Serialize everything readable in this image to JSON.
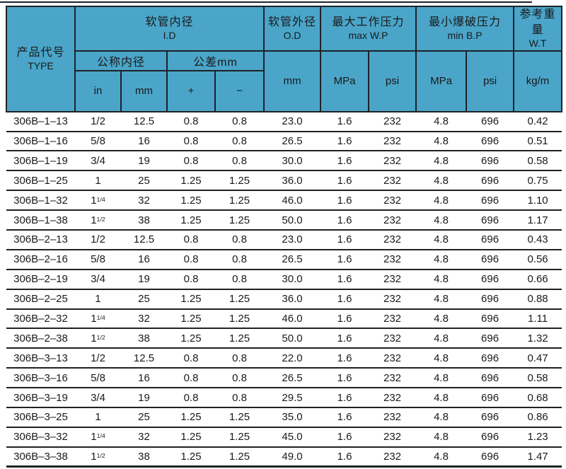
{
  "chart_data": {
    "type": "table",
    "header": {
      "type_col": {
        "zh": "产品代号",
        "en": "TYPE"
      },
      "id_group": {
        "zh": "软管内径",
        "en": "I.D"
      },
      "od_group": {
        "zh": "软管外径",
        "en": "O.D"
      },
      "maxwp_group": {
        "zh": "最大工作压力",
        "en": "max W.P"
      },
      "minbp_group": {
        "zh": "最小爆破压力",
        "en": "min B.P"
      },
      "weight_group": {
        "zh": "参考重量",
        "en": "W.T"
      },
      "nominal_id_label": "公称内径",
      "tolerance_label": "公差mm",
      "units": {
        "in_unit": "in",
        "mm_unit": "mm",
        "plus": "+",
        "minus": "−",
        "od_mm": "mm",
        "maxwp_mpa": "MPa",
        "maxwp_psi": "psi",
        "minbp_mpa": "MPa",
        "minbp_psi": "psi",
        "weight_kgm": "kg/m"
      }
    },
    "column_keys": [
      "type",
      "nominal-in",
      "nominal-mm",
      "tol-plus",
      "tol-minus",
      "od-mm",
      "maxwp-mpa",
      "maxwp-psi",
      "minbp-mpa",
      "minbp-psi",
      "weight-kgm"
    ],
    "rows": [
      [
        "306B–1–13",
        "1/2",
        "12.5",
        "0.8",
        "0.8",
        "23.0",
        "1.6",
        "232",
        "4.8",
        "696",
        "0.42"
      ],
      [
        "306B–1–16",
        "5/8",
        "16",
        "0.8",
        "0.8",
        "26.5",
        "1.6",
        "232",
        "4.8",
        "696",
        "0.51"
      ],
      [
        "306B–1–19",
        "3/4",
        "19",
        "0.8",
        "0.8",
        "30.0",
        "1.6",
        "232",
        "4.8",
        "696",
        "0.58"
      ],
      [
        "306B–1–25",
        "1",
        "25",
        "1.25",
        "1.25",
        "36.0",
        "1.6",
        "232",
        "4.8",
        "696",
        "0.75"
      ],
      [
        "306B–1–32",
        "1 1/4",
        "32",
        "1.25",
        "1.25",
        "46.0",
        "1.6",
        "232",
        "4.8",
        "696",
        "1.10"
      ],
      [
        "306B–1–38",
        "1 1/2",
        "38",
        "1.25",
        "1.25",
        "50.0",
        "1.6",
        "232",
        "4.8",
        "696",
        "1.17"
      ],
      [
        "306B–2–13",
        "1/2",
        "12.5",
        "0.8",
        "0.8",
        "23.0",
        "1.6",
        "232",
        "4.8",
        "696",
        "0.43"
      ],
      [
        "306B–2–16",
        "5/8",
        "16",
        "0.8",
        "0.8",
        "26.5",
        "1.6",
        "232",
        "4.8",
        "696",
        "0.56"
      ],
      [
        "306B–2–19",
        "3/4",
        "19",
        "0.8",
        "0.8",
        "30.0",
        "1.6",
        "232",
        "4.8",
        "696",
        "0.66"
      ],
      [
        "306B–2–25",
        "1",
        "25",
        "1.25",
        "1.25",
        "36.0",
        "1.6",
        "232",
        "4.8",
        "696",
        "0.88"
      ],
      [
        "306B–2–32",
        "1 1/4",
        "32",
        "1.25",
        "1.25",
        "46.0",
        "1.6",
        "232",
        "4.8",
        "696",
        "1.11"
      ],
      [
        "306B–2–38",
        "1 1/2",
        "38",
        "1.25",
        "1.25",
        "50.0",
        "1.6",
        "232",
        "4.8",
        "696",
        "1.32"
      ],
      [
        "306B–3–13",
        "1/2",
        "12.5",
        "0.8",
        "0.8",
        "22.0",
        "1.6",
        "232",
        "4.8",
        "696",
        "0.47"
      ],
      [
        "306B–3–16",
        "5/8",
        "16",
        "0.8",
        "0.8",
        "26.5",
        "1.6",
        "232",
        "4.8",
        "696",
        "0.58"
      ],
      [
        "306B–3–19",
        "3/4",
        "19",
        "0.8",
        "0.8",
        "29.5",
        "1.6",
        "232",
        "4.8",
        "696",
        "0.68"
      ],
      [
        "306B–3–25",
        "1",
        "25",
        "1.25",
        "1.25",
        "35.0",
        "1.6",
        "232",
        "4.8",
        "696",
        "0.86"
      ],
      [
        "306B–3–32",
        "1 1/4",
        "32",
        "1.25",
        "1.25",
        "45.0",
        "1.6",
        "232",
        "4.8",
        "696",
        "1.23"
      ],
      [
        "306B–3–38",
        "1 1/2",
        "38",
        "1.25",
        "1.25",
        "49.0",
        "1.6",
        "232",
        "4.8",
        "696",
        "1.47"
      ]
    ]
  },
  "colors": {
    "header_bg": "#4aa5c9",
    "border": "#1e2226",
    "text": "#1a1a1a",
    "body_bg": "#ffffff"
  }
}
